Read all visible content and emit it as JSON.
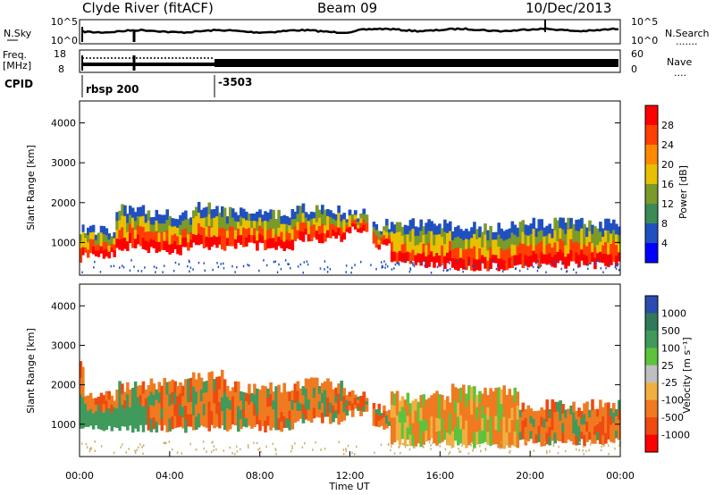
{
  "header": {
    "station": "Clyde River (fitACF)",
    "beam": "Beam 09",
    "date": "10/Dec/2013"
  },
  "panels": {
    "nsky_label": "N.Sky",
    "nsearch_label": "N.Search",
    "nsearch_marker": ".......",
    "freq_label_line1": "Freq.",
    "freq_label_line2": "[MHz]",
    "nave_label": "Nave",
    "nave_marker": "....",
    "cpid_label": "CPID",
    "cpid_segments": [
      {
        "start_hour": 0,
        "text": "rbsp 200"
      },
      {
        "start_hour": 6.0,
        "text": "-3503"
      }
    ],
    "noise_left_ticks": [
      "10^5",
      "10^0"
    ],
    "noise_right_ticks": [
      "10^5",
      "10^0"
    ],
    "freq_left_ticks": [
      "18",
      "8"
    ],
    "freq_right_ticks": [
      "60",
      "0"
    ]
  },
  "chart_data": [
    {
      "type": "heatmap",
      "name": "power",
      "ylabel": "Slant Range [km]",
      "ylim": [
        180,
        4550
      ],
      "xlim_hours": [
        0,
        24
      ],
      "yticks": [
        1000,
        2000,
        3000,
        4000
      ],
      "colorbar_label": "Power [dB]",
      "colorbar_ticks": [
        "28",
        "24",
        "20",
        "16",
        "12",
        "8",
        "4"
      ],
      "colorbar_colors": [
        "#ff0000",
        "#ff4000",
        "#ff8a00",
        "#e8c000",
        "#7a9a2a",
        "#3c8a55",
        "#2050c0",
        "#0000ff"
      ],
      "bands": [
        {
          "t0": 0.0,
          "t1": 0.2,
          "r0": 600,
          "r1": 1400
        },
        {
          "t0": 0.2,
          "t1": 1.6,
          "r0": 700,
          "r1": 1350
        },
        {
          "t0": 1.6,
          "t1": 3.0,
          "r0": 900,
          "r1": 1900
        },
        {
          "t0": 3.0,
          "t1": 5.0,
          "r0": 800,
          "r1": 1800
        },
        {
          "t0": 5.0,
          "t1": 6.5,
          "r0": 900,
          "r1": 1950
        },
        {
          "t0": 6.5,
          "t1": 9.5,
          "r0": 900,
          "r1": 1800
        },
        {
          "t0": 9.5,
          "t1": 11.8,
          "r0": 1100,
          "r1": 1900
        },
        {
          "t0": 11.8,
          "t1": 12.8,
          "r0": 1300,
          "r1": 1800
        },
        {
          "t0": 13.0,
          "t1": 13.8,
          "r0": 900,
          "r1": 1500
        },
        {
          "t0": 13.8,
          "t1": 16.5,
          "r0": 450,
          "r1": 1550
        },
        {
          "t0": 16.5,
          "t1": 19.5,
          "r0": 400,
          "r1": 1450
        },
        {
          "t0": 19.5,
          "t1": 24.0,
          "r0": 450,
          "r1": 1550
        }
      ]
    },
    {
      "type": "heatmap",
      "name": "velocity",
      "ylabel": "Slant Range [km]",
      "ylim": [
        180,
        4550
      ],
      "xlim_hours": [
        0,
        24
      ],
      "yticks": [
        1000,
        2000,
        3000,
        4000
      ],
      "xticks": [
        "00:00",
        "04:00",
        "08:00",
        "12:00",
        "16:00",
        "20:00",
        "00:00"
      ],
      "xlabel": "Time UT",
      "colorbar_label": "Velocity [m s⁻¹]",
      "colorbar_ticks": [
        "1000",
        "500",
        "100",
        "25",
        "-25",
        "-100",
        "-500",
        "-1000"
      ],
      "colorbar_colors": [
        "#2a4cb0",
        "#2f7a5a",
        "#3f9a5c",
        "#5cc43c",
        "#bfbfbf",
        "#f0b040",
        "#f07a20",
        "#ef4a10",
        "#ff0000"
      ],
      "bands": [
        {
          "t0": 0.0,
          "t1": 0.2,
          "r0": 800,
          "r1": 2600
        },
        {
          "t0": 0.2,
          "t1": 1.6,
          "r0": 900,
          "r1": 1800
        },
        {
          "t0": 1.6,
          "t1": 3.0,
          "r0": 900,
          "r1": 2000
        },
        {
          "t0": 3.0,
          "t1": 5.0,
          "r0": 900,
          "r1": 2100
        },
        {
          "t0": 5.0,
          "t1": 6.5,
          "r0": 900,
          "r1": 2300
        },
        {
          "t0": 6.5,
          "t1": 9.5,
          "r0": 900,
          "r1": 2000
        },
        {
          "t0": 9.5,
          "t1": 11.8,
          "r0": 1100,
          "r1": 2100
        },
        {
          "t0": 11.8,
          "t1": 12.8,
          "r0": 1300,
          "r1": 1800
        },
        {
          "t0": 13.0,
          "t1": 13.8,
          "r0": 900,
          "r1": 1500
        },
        {
          "t0": 13.8,
          "t1": 16.5,
          "r0": 550,
          "r1": 1750
        },
        {
          "t0": 16.5,
          "t1": 19.5,
          "r0": 500,
          "r1": 1950
        },
        {
          "t0": 19.5,
          "t1": 24.0,
          "r0": 550,
          "r1": 1550
        }
      ]
    }
  ]
}
